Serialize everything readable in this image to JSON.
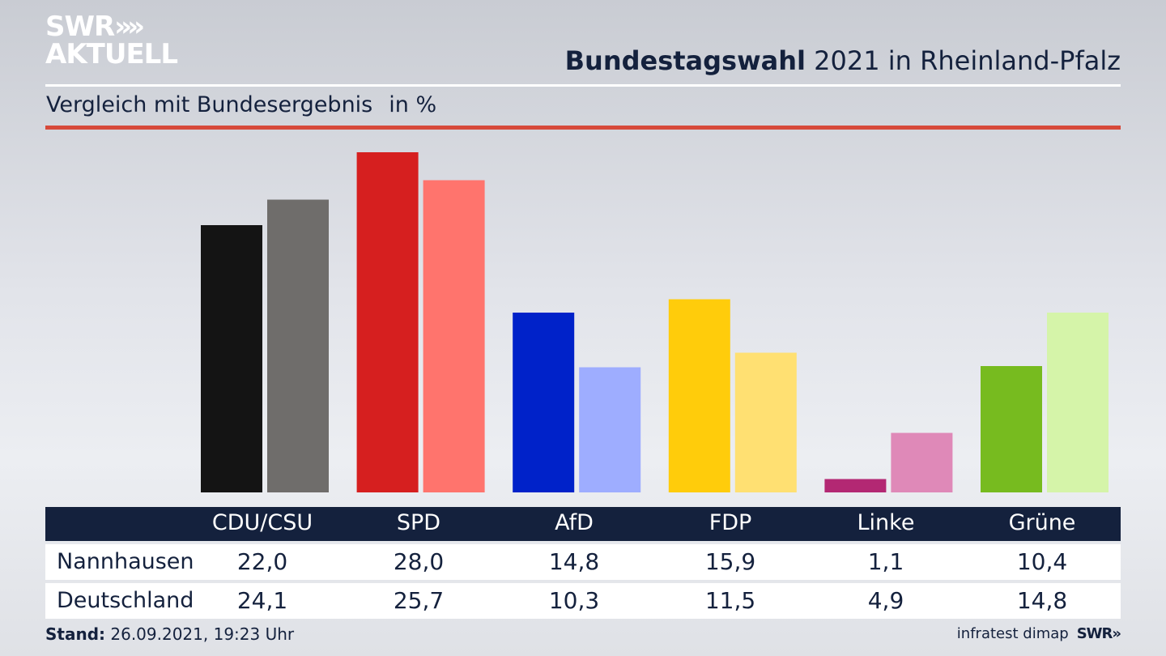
{
  "brand": {
    "logo_line1": "SWR",
    "logo_chevrons": "»",
    "logo_line2": "AKTUELL"
  },
  "header": {
    "title_bold": "Bundestagswahl",
    "title_rest": " 2021 in Rheinland-Pfalz",
    "subtitle": "Vergleich mit Bundesergebnis",
    "unit": "in %"
  },
  "chart_data": {
    "type": "bar",
    "categories": [
      "CDU/CSU",
      "SPD",
      "AfD",
      "FDP",
      "Linke",
      "Grüne"
    ],
    "series": [
      {
        "name": "Nannhausen",
        "values": [
          22.0,
          28.0,
          14.8,
          15.9,
          1.1,
          10.4
        ],
        "colors": [
          "#141414",
          "#d61f1f",
          "#0022c9",
          "#ffcc0b",
          "#b32873",
          "#77bb1f"
        ]
      },
      {
        "name": "Deutschland",
        "values": [
          24.1,
          25.7,
          10.3,
          11.5,
          4.9,
          14.8
        ],
        "colors": [
          "#6f6d6b",
          "#ff746d",
          "#9eadff",
          "#ffe072",
          "#df89b8",
          "#d5f4a9"
        ]
      }
    ],
    "ylim": [
      0,
      28
    ],
    "grid": false,
    "legend": "table-below"
  },
  "table": {
    "headers": [
      "CDU/CSU",
      "SPD",
      "AfD",
      "FDP",
      "Linke",
      "Grüne"
    ],
    "rows": [
      {
        "label": "Nannhausen",
        "values": [
          "22,0",
          "28,0",
          "14,8",
          "15,9",
          "1,1",
          "10,4"
        ]
      },
      {
        "label": "Deutschland",
        "values": [
          "24,1",
          "25,7",
          "10,3",
          "11,5",
          "4,9",
          "14,8"
        ]
      }
    ]
  },
  "footer": {
    "stand_label": "Stand:",
    "stand_value": " 26.09.2021, 19:23 Uhr",
    "source": "infratest dimap",
    "brand_small": "SWR»"
  }
}
